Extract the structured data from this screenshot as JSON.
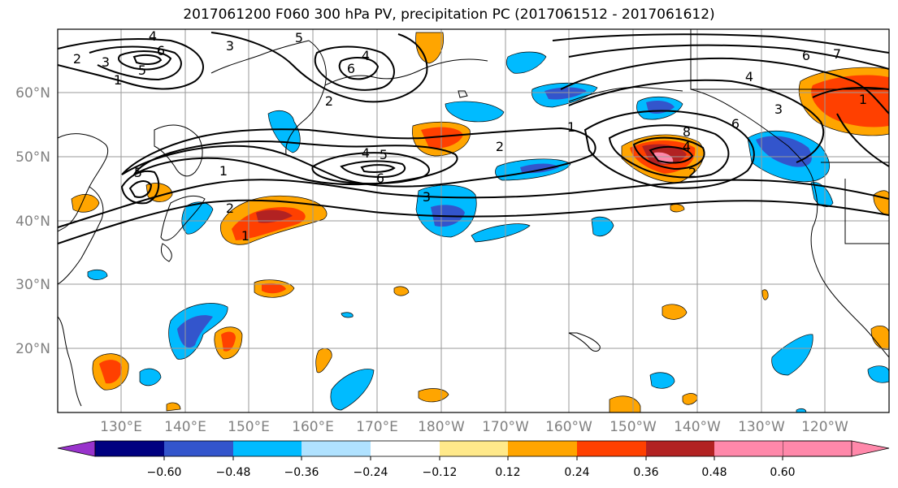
{
  "title": "2017061200 F060 300 hPa PV, precipitation PC (2017061512 - 2017061612)",
  "lat_labels": [
    "60°N",
    "50°N",
    "40°N",
    "30°N",
    "20°N"
  ],
  "lon_labels": [
    "130°E",
    "140°E",
    "150°E",
    "160°E",
    "170°E",
    "180°W",
    "170°W",
    "160°W",
    "150°W",
    "140°W",
    "130°W",
    "120°W"
  ],
  "colorbar": {
    "ticks": [
      "−0.60",
      "−0.48",
      "−0.36",
      "−0.24",
      "−0.12",
      "0.12",
      "0.24",
      "0.36",
      "0.48",
      "0.60"
    ],
    "colors": [
      "#9933cc",
      "#000080",
      "#3355cc",
      "#00bbff",
      "#b0e2ff",
      "#ffffff",
      "#ffe98a",
      "#ffa500",
      "#ff4000",
      "#b22222",
      "#ff88aa"
    ]
  },
  "contour_labels": [
    "4",
    "6",
    "5",
    "3",
    "2",
    "1",
    "5",
    "4",
    "6",
    "5",
    "3",
    "2",
    "1",
    "2",
    "1",
    "5",
    "4",
    "6",
    "3",
    "2",
    "8",
    "6",
    "4",
    "2",
    "3",
    "1",
    "6",
    "7",
    "4",
    "1"
  ]
}
